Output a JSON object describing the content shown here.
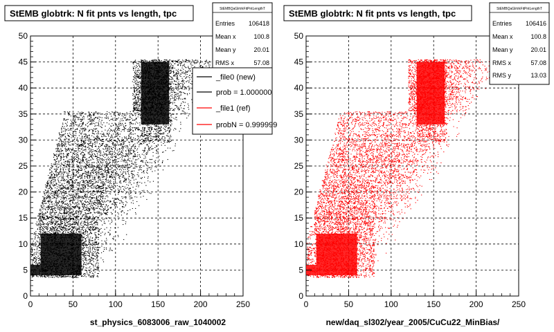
{
  "footer_text": "",
  "chart_data": [
    {
      "type": "scatter",
      "title": "StEMB globtrk: N fit pnts vs length, tpc",
      "xlabel": "st_physics_6083006_raw_1040002",
      "ylabel": "",
      "xlim": [
        0,
        250
      ],
      "ylim": [
        0,
        50
      ],
      "x_ticks": [
        0,
        50,
        100,
        150,
        200,
        250
      ],
      "y_ticks": [
        0,
        5,
        10,
        15,
        20,
        25,
        30,
        35,
        40,
        45,
        50
      ],
      "grid": true,
      "point_color": "#000000",
      "stats": {
        "header": "StEMBQaGlrtrkFitPntLengthT",
        "rows": [
          {
            "label": "Entries",
            "value": "106418"
          },
          {
            "label": "Mean x",
            "value": "100.8"
          },
          {
            "label": "Mean y",
            "value": "20.01"
          },
          {
            "label": "RMS x",
            "value": "57.08"
          }
        ]
      },
      "legend": {
        "placement": "top-right",
        "entries": [
          {
            "label": "_file0 (new)",
            "color": "#000000"
          },
          {
            "label": "prob = 1.000000",
            "color": "#000000"
          },
          {
            "label": "_file1 (ref)",
            "color": "#ff0000"
          },
          {
            "label": "probN = 0.999999",
            "color": "#ff0000"
          }
        ]
      }
    },
    {
      "type": "scatter",
      "title": "StEMB globtrk: N fit pnts vs length, tpc",
      "xlabel": "new/daq_sl302/year_2005/CuCu22_MinBias/",
      "ylabel": "",
      "xlim": [
        0,
        250
      ],
      "ylim": [
        0,
        50
      ],
      "x_ticks": [
        0,
        50,
        100,
        150,
        200,
        250
      ],
      "y_ticks": [
        0,
        5,
        10,
        15,
        20,
        25,
        30,
        35,
        40,
        45,
        50
      ],
      "grid": true,
      "point_color": "#ff0000",
      "stats": {
        "header": "StEMBQaGlrtrkFitPntLengthT",
        "rows": [
          {
            "label": "Entries",
            "value": "106416"
          },
          {
            "label": "Mean x",
            "value": "100.8"
          },
          {
            "label": "Mean y",
            "value": "20.01"
          },
          {
            "label": "RMS x",
            "value": "57.08"
          },
          {
            "label": "RMS y",
            "value": "13.03"
          }
        ]
      }
    }
  ]
}
